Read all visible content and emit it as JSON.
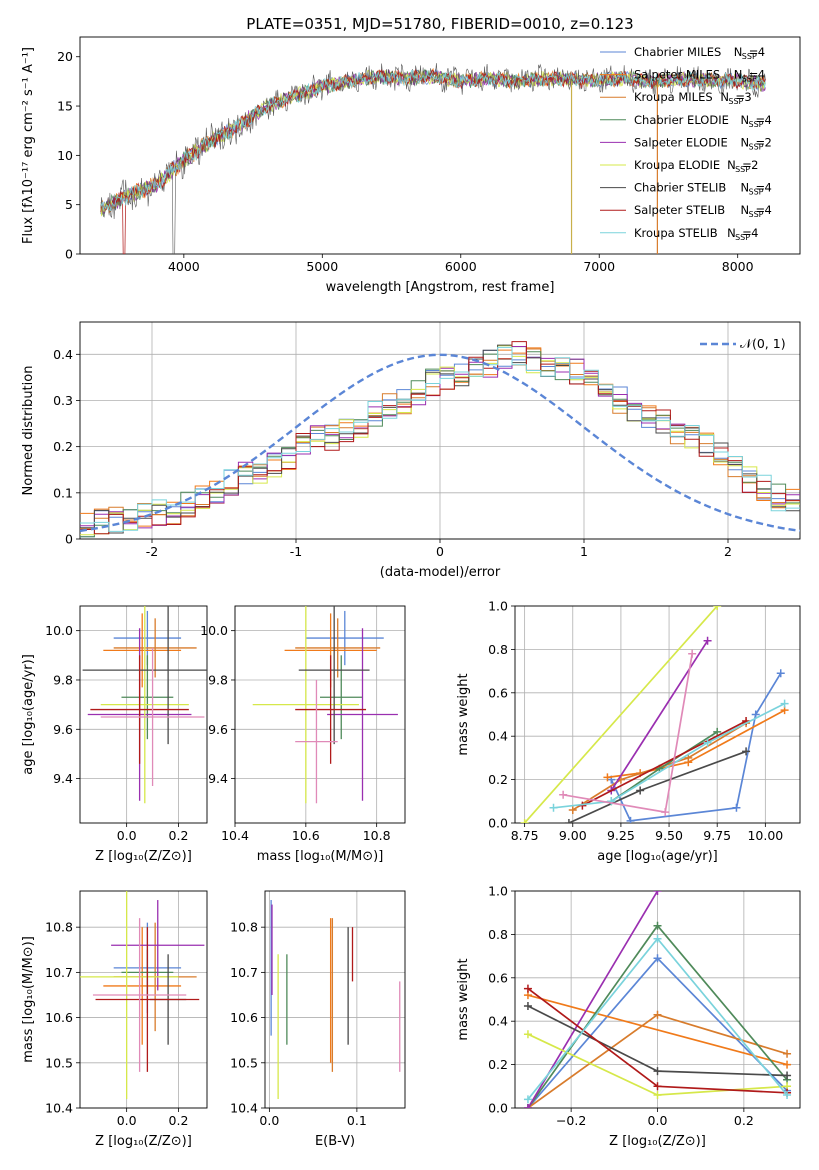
{
  "figure": {
    "title": "PLATE=0351, MJD=51780, FIBERID=0010, z=0.123"
  },
  "models": [
    {
      "name": "Chabrier MILES",
      "nssp": 4,
      "color": "#5b86d6"
    },
    {
      "name": "Salpeter MILES",
      "nssp": 4,
      "color": "#f07a1a"
    },
    {
      "name": "Kroupa MILES",
      "nssp": 3,
      "color": "#d87c2c"
    },
    {
      "name": "Chabrier ELODIE",
      "nssp": 4,
      "color": "#4f8a5a"
    },
    {
      "name": "Salpeter ELODIE",
      "nssp": 2,
      "color": "#9a2fb0"
    },
    {
      "name": "Kroupa ELODIE",
      "nssp": 2,
      "color": "#d6e84a"
    },
    {
      "name": "Chabrier STELIB",
      "nssp": 4,
      "color": "#4a4a4a"
    },
    {
      "name": "Salpeter STELIB",
      "nssp": 4,
      "color": "#b01a1a"
    },
    {
      "name": "Kroupa STELIB",
      "nssp": 4,
      "color": "#7ad3dc"
    }
  ],
  "chart_data": [
    {
      "id": "spectrum",
      "type": "line",
      "xlabel": "wavelength [Angstrom, rest frame]",
      "ylabel": "Flux [fλ10⁻¹⁷ erg cm⁻² s⁻¹ A⁻¹]",
      "xlim": [
        3250,
        8450
      ],
      "ylim": [
        0,
        22
      ],
      "xticks": [
        4000,
        5000,
        6000,
        7000,
        8000
      ],
      "yticks": [
        0,
        5,
        10,
        15,
        20
      ],
      "x": [
        3400,
        3600,
        3800,
        4000,
        4200,
        4400,
        4600,
        4800,
        5000,
        5200,
        5400,
        5600,
        5800,
        6000,
        6200,
        6400,
        6600,
        6800,
        7000,
        7200,
        7400,
        7600,
        7800,
        8000,
        8200
      ],
      "y": [
        4.5,
        6.0,
        7.0,
        9.5,
        11.5,
        13.0,
        15.0,
        16.0,
        17.0,
        17.5,
        18.0,
        17.8,
        18.0,
        17.5,
        17.8,
        17.5,
        17.8,
        17.7,
        17.6,
        17.8,
        17.5,
        17.7,
        17.6,
        17.6,
        17.2
      ]
    },
    {
      "id": "residual-histogram",
      "type": "area",
      "xlabel": "(data-model)/error",
      "ylabel": "Normed distribution",
      "xlim": [
        -2.5,
        2.5
      ],
      "ylim": [
        0,
        0.47
      ],
      "xticks": [
        -2,
        -1,
        0,
        1,
        2
      ],
      "yticks": [
        0.0,
        0.1,
        0.2,
        0.3,
        0.4
      ],
      "reference_label": "𝒩(0, 1)",
      "bin_width": 0.1,
      "bins_start": -2.5,
      "values": [
        0.03,
        0.035,
        0.04,
        0.045,
        0.05,
        0.055,
        0.06,
        0.075,
        0.085,
        0.1,
        0.12,
        0.14,
        0.15,
        0.16,
        0.18,
        0.2,
        0.22,
        0.22,
        0.23,
        0.25,
        0.27,
        0.29,
        0.3,
        0.32,
        0.34,
        0.35,
        0.36,
        0.37,
        0.38,
        0.39,
        0.4,
        0.39,
        0.38,
        0.37,
        0.36,
        0.34,
        0.32,
        0.3,
        0.28,
        0.27,
        0.25,
        0.23,
        0.22,
        0.2,
        0.18,
        0.15,
        0.13,
        0.11,
        0.09,
        0.08
      ]
    },
    {
      "id": "age-vs-Z",
      "type": "scatter",
      "xlabel": "Z [log₁₀(Z/Z⊙)]",
      "ylabel": "age  [log₁₀(age/yr)]",
      "xlim": [
        -0.18,
        0.31
      ],
      "ylim": [
        9.22,
        10.1
      ],
      "xticks": [
        "0.0",
        "0.2"
      ],
      "yticks": [
        "9.4",
        "9.6",
        "9.8",
        "10.0"
      ],
      "points": [
        {
          "x": 0.08,
          "y": 9.97,
          "xerr": 0.13,
          "yerr": 0.11
        },
        {
          "x": 0.06,
          "y": 9.92,
          "xerr": 0.15,
          "yerr": 0.15
        },
        {
          "x": 0.11,
          "y": 9.93,
          "xerr": 0.16,
          "yerr": 0.12
        },
        {
          "x": 0.08,
          "y": 9.73,
          "xerr": 0.1,
          "yerr": 0.17
        },
        {
          "x": 0.05,
          "y": 9.66,
          "xerr": 0.2,
          "yerr": 0.35
        },
        {
          "x": 0.07,
          "y": 9.7,
          "xerr": 0.17,
          "yerr": 0.4
        },
        {
          "x": 0.16,
          "y": 9.84,
          "xerr": 0.33,
          "yerr": 0.3
        },
        {
          "x": 0.05,
          "y": 9.68,
          "xerr": 0.19,
          "yerr": 0.22
        },
        {
          "x": 0.1,
          "y": 9.65,
          "xerr": 0.2,
          "yerr": 0.28
        }
      ]
    },
    {
      "id": "age-vs-mass",
      "type": "scatter",
      "xlabel": "mass [log₁₀(M/M⊙)]",
      "ylabel": "",
      "xlim": [
        10.4,
        10.88
      ],
      "ylim": [
        9.22,
        10.1
      ],
      "xticks": [
        "10.4",
        "10.6",
        "10.8"
      ],
      "yticks": [
        "9.4",
        "9.6",
        "9.8",
        "10.0"
      ],
      "points": [
        {
          "x": 10.71,
          "y": 9.97,
          "xerr": 0.11,
          "yerr": 0.11
        },
        {
          "x": 10.67,
          "y": 9.92,
          "xerr": 0.13,
          "yerr": 0.15
        },
        {
          "x": 10.69,
          "y": 9.93,
          "xerr": 0.12,
          "yerr": 0.12
        },
        {
          "x": 10.7,
          "y": 9.73,
          "xerr": 0.06,
          "yerr": 0.17
        },
        {
          "x": 10.76,
          "y": 9.66,
          "xerr": 0.1,
          "yerr": 0.35
        },
        {
          "x": 10.6,
          "y": 9.7,
          "xerr": 0.15,
          "yerr": 0.4
        },
        {
          "x": 10.68,
          "y": 9.84,
          "xerr": 0.1,
          "yerr": 0.3
        },
        {
          "x": 10.67,
          "y": 9.68,
          "xerr": 0.1,
          "yerr": 0.22
        },
        {
          "x": 10.63,
          "y": 9.55,
          "xerr": 0.06,
          "yerr": 0.25
        }
      ]
    },
    {
      "id": "massweight-vs-age",
      "type": "line",
      "xlabel": "age  [log₁₀(age/yr)]",
      "ylabel": "mass weight",
      "xlim": [
        8.7,
        10.18
      ],
      "ylim": [
        0,
        1
      ],
      "xticks": [
        "8.75",
        "9.00",
        "9.25",
        "9.50",
        "9.75",
        "10.00"
      ],
      "yticks": [
        "0.0",
        "0.2",
        "0.4",
        "0.6",
        "0.8",
        "1.0"
      ],
      "series": [
        {
          "x": [
            9.2,
            9.3,
            9.85,
            9.95,
            10.08
          ],
          "y": [
            0.2,
            0.01,
            0.07,
            0.5,
            0.69
          ]
        },
        {
          "x": [
            9.18,
            9.35,
            9.6,
            10.1
          ],
          "y": [
            0.21,
            0.23,
            0.28,
            0.52
          ]
        },
        {
          "x": [
            9.0,
            9.25,
            9.6,
            9.9
          ],
          "y": [
            0.06,
            0.2,
            0.3,
            0.46
          ]
        },
        {
          "x": [
            9.2,
            9.45,
            9.75
          ],
          "y": [
            0.1,
            0.25,
            0.42
          ]
        },
        {
          "x": [
            9.2,
            9.7
          ],
          "y": [
            0.15,
            0.84
          ]
        },
        {
          "x": [
            8.75,
            9.75
          ],
          "y": [
            0.0,
            1.0
          ]
        },
        {
          "x": [
            8.98,
            9.35,
            9.9
          ],
          "y": [
            0.0,
            0.15,
            0.33
          ]
        },
        {
          "x": [
            9.05,
            9.9
          ],
          "y": [
            0.08,
            0.47
          ]
        },
        {
          "x": [
            8.9,
            9.2,
            9.7,
            10.1
          ],
          "y": [
            0.07,
            0.1,
            0.37,
            0.55
          ]
        },
        {
          "x": [
            8.95,
            9.48,
            9.62
          ],
          "y": [
            0.13,
            0.05,
            0.78
          ]
        }
      ]
    },
    {
      "id": "mass-vs-Z",
      "type": "scatter",
      "xlabel": "Z [log₁₀(Z/Z⊙)]",
      "ylabel": "mass [log₁₀(M/M⊙)]",
      "xlim": [
        -0.18,
        0.31
      ],
      "ylim": [
        10.4,
        10.88
      ],
      "xticks": [
        "0.0",
        "0.2"
      ],
      "yticks": [
        "10.4",
        "10.5",
        "10.6",
        "10.7",
        "10.8"
      ],
      "points": [
        {
          "x": 0.08,
          "y": 10.71,
          "xerr": 0.13,
          "yerr": 0.1
        },
        {
          "x": 0.06,
          "y": 10.67,
          "xerr": 0.15,
          "yerr": 0.13
        },
        {
          "x": 0.11,
          "y": 10.69,
          "xerr": 0.16,
          "yerr": 0.12
        },
        {
          "x": 0.08,
          "y": 10.7,
          "xerr": 0.1,
          "yerr": 0.05
        },
        {
          "x": 0.12,
          "y": 10.76,
          "xerr": 0.18,
          "yerr": 0.1
        },
        {
          "x": 0.0,
          "y": 10.69,
          "xerr": 0.2,
          "yerr": 0.27
        },
        {
          "x": 0.16,
          "y": 10.64,
          "xerr": 0.07,
          "yerr": 0.1
        },
        {
          "x": 0.08,
          "y": 10.64,
          "xerr": 0.2,
          "yerr": 0.16
        },
        {
          "x": 0.05,
          "y": 10.65,
          "xerr": 0.18,
          "yerr": 0.17
        }
      ]
    },
    {
      "id": "mass-vs-EBV",
      "type": "scatter",
      "xlabel": "E(B-V)",
      "ylabel": "",
      "xlim": [
        -0.005,
        0.155
      ],
      "ylim": [
        10.4,
        10.88
      ],
      "xticks": [
        "0.0",
        "0.1"
      ],
      "yticks": [
        "10.4",
        "10.5",
        "10.6",
        "10.7",
        "10.8"
      ],
      "points": [
        {
          "x": 0.002,
          "y": 10.71,
          "xerr": 0,
          "yerr": 0.15
        },
        {
          "x": 0.07,
          "y": 10.66,
          "xerr": 0,
          "yerr": 0.16
        },
        {
          "x": 0.072,
          "y": 10.65,
          "xerr": 0,
          "yerr": 0.17
        },
        {
          "x": 0.02,
          "y": 10.64,
          "xerr": 0,
          "yerr": 0.1
        },
        {
          "x": 0.003,
          "y": 10.75,
          "xerr": 0,
          "yerr": 0.1
        },
        {
          "x": 0.01,
          "y": 10.58,
          "xerr": 0,
          "yerr": 0.16
        },
        {
          "x": 0.09,
          "y": 10.67,
          "xerr": 0,
          "yerr": 0.13
        },
        {
          "x": 0.095,
          "y": 10.74,
          "xerr": 0,
          "yerr": 0.06
        },
        {
          "x": 0.149,
          "y": 10.58,
          "xerr": 0,
          "yerr": 0.1
        }
      ]
    },
    {
      "id": "massweight-vs-Z",
      "type": "line",
      "xlabel": "Z [log₁₀(Z/Z⊙)]",
      "ylabel": "mass weight",
      "xlim": [
        -0.33,
        0.33
      ],
      "ylim": [
        0,
        1
      ],
      "xticks": [
        "−0.2",
        "0.0",
        "0.2"
      ],
      "yticks": [
        "0.0",
        "0.2",
        "0.4",
        "0.6",
        "0.8",
        "1.0"
      ],
      "series": [
        {
          "x": [
            -0.3,
            0.0,
            0.3
          ],
          "y": [
            0.0,
            0.69,
            0.08
          ]
        },
        {
          "x": [
            -0.3,
            0.3
          ],
          "y": [
            0.52,
            0.2
          ]
        },
        {
          "x": [
            -0.3,
            0.0,
            0.3
          ],
          "y": [
            0.0,
            0.43,
            0.25
          ]
        },
        {
          "x": [
            -0.3,
            0.0,
            0.3
          ],
          "y": [
            0.0,
            0.84,
            0.13
          ]
        },
        {
          "x": [
            -0.3,
            0.0
          ],
          "y": [
            0.0,
            1.0
          ]
        },
        {
          "x": [
            -0.3,
            0.0,
            0.3
          ],
          "y": [
            0.34,
            0.06,
            0.1
          ]
        },
        {
          "x": [
            -0.3,
            0.0,
            0.3
          ],
          "y": [
            0.47,
            0.17,
            0.15
          ]
        },
        {
          "x": [
            -0.3,
            0.0,
            0.3
          ],
          "y": [
            0.55,
            0.1,
            0.07
          ]
        },
        {
          "x": [
            -0.3,
            0.0,
            0.3
          ],
          "y": [
            0.04,
            0.78,
            0.06
          ]
        }
      ]
    }
  ]
}
